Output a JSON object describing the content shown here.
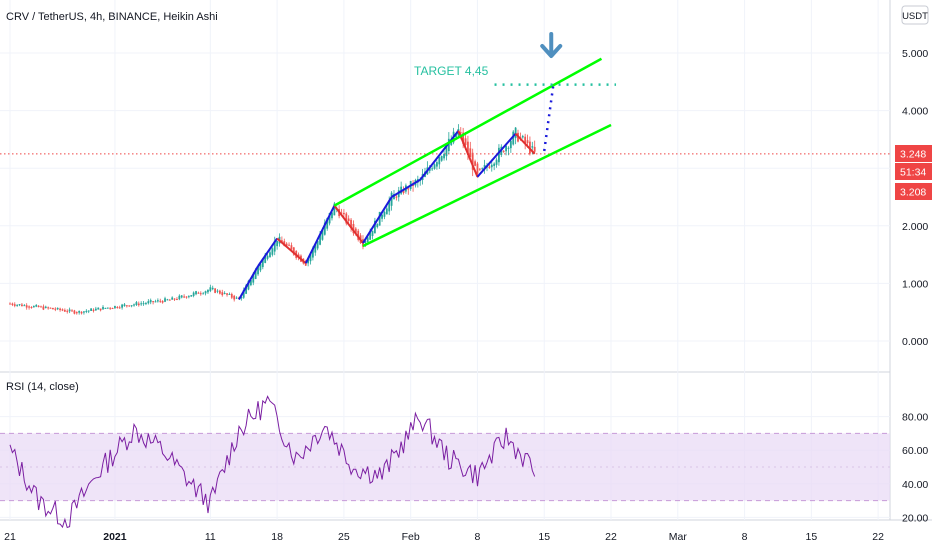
{
  "header": {
    "symbol_title": "CRV / TetherUS, 4h, BINANCE, Heikin Ashi",
    "currency_button": "USDT"
  },
  "annotation": {
    "target_text": "TARGET 4,45",
    "target_value": 4.45
  },
  "price_badges": {
    "last": "3.248",
    "countdown": "51:34",
    "prev": "3.208"
  },
  "colors": {
    "up": "#26a69a",
    "down": "#ef5350",
    "channel": "#00ff00",
    "zigzag_up": "#1a1adb",
    "zigzag_down": "#e03030",
    "target": "#26c0a0",
    "arrow": "#4f8fbf",
    "rsi": "#7b1fa2",
    "rsi_band": "#e8d8f5",
    "badge": "#ef4545"
  },
  "chart_data": [
    {
      "type": "line",
      "title": "CRV / TetherUS, 4h, BINANCE, Heikin Ashi",
      "style": "heikin-ashi candles",
      "yticks": [
        "0.000",
        "1.000",
        "2.000",
        "3.000",
        "4.000",
        "5.000"
      ],
      "ylim": [
        -0.05,
        5.6
      ],
      "xticks": [
        "21",
        "2021",
        "11",
        "18",
        "25",
        "Feb",
        "8",
        "15",
        "22",
        "Mar",
        "8",
        "15",
        "22"
      ],
      "last_price": 3.248,
      "series": [
        {
          "name": "",
          "x": [
            "Dec 21",
            "Dec 28",
            "2021",
            "Jan 7",
            "Jan 11",
            "Jan 14",
            "Jan 16",
            "Jan 18",
            "Jan 21",
            "Jan 24",
            "Jan 27",
            "Jan 30",
            "Feb 2",
            "Feb 6",
            "Feb 8",
            "Feb 12",
            "Feb 14"
          ],
          "y": [
            0.65,
            0.5,
            0.6,
            0.72,
            0.9,
            0.72,
            1.3,
            1.78,
            1.35,
            2.35,
            1.7,
            2.5,
            2.8,
            3.65,
            2.85,
            3.6,
            3.25
          ]
        }
      ],
      "annotations": [
        {
          "kind": "ascending channel upper",
          "from": [
            "Jan 24",
            2.35
          ],
          "to": [
            "Feb 21",
            4.9
          ]
        },
        {
          "kind": "ascending channel lower",
          "from": [
            "Jan 27",
            1.65
          ],
          "to": [
            "Feb 22",
            3.75
          ]
        },
        {
          "kind": "target level",
          "value": 4.45,
          "text": "TARGET 4,45"
        },
        {
          "kind": "projection",
          "from": [
            "Feb 15",
            3.3
          ],
          "to": [
            "Feb 16",
            4.5
          ]
        }
      ]
    },
    {
      "type": "line",
      "title": "RSI (14, close)",
      "yticks": [
        "20.00",
        "40.00",
        "60.00",
        "80.00"
      ],
      "ylim": [
        12,
        94
      ],
      "bands": [
        30,
        70
      ],
      "series": [
        {
          "name": "RSI (14, close)",
          "x": [
            "Dec 21",
            "Dec 24",
            "Dec 27",
            "Dec 30",
            "Jan 3",
            "Jan 6",
            "Jan 9",
            "Jan 11",
            "Jan 14",
            "Jan 17",
            "Jan 20",
            "Jan 23",
            "Jan 26",
            "Jan 29",
            "Feb 2",
            "Feb 5",
            "Feb 8",
            "Feb 11",
            "Feb 14"
          ],
          "y": [
            60,
            30,
            18,
            45,
            72,
            60,
            40,
            28,
            72,
            89,
            55,
            75,
            50,
            45,
            80,
            55,
            45,
            68,
            48
          ]
        }
      ]
    }
  ]
}
